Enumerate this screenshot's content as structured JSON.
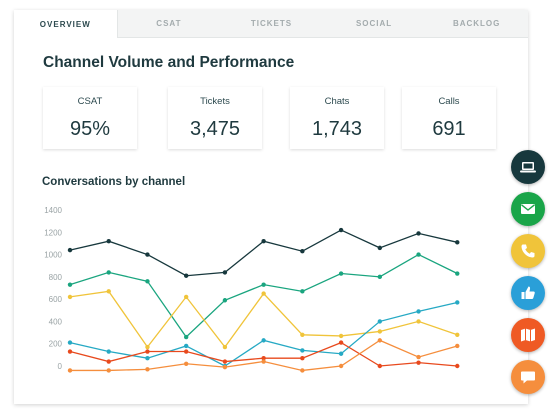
{
  "tabs": [
    {
      "label": "OVERVIEW",
      "active": true
    },
    {
      "label": "CSAT",
      "active": false
    },
    {
      "label": "TICKETS",
      "active": false
    },
    {
      "label": "SOCIAL",
      "active": false
    },
    {
      "label": "BACKLOG",
      "active": false
    }
  ],
  "page_title": "Channel Volume and Performance",
  "kpis": [
    {
      "label": "CSAT",
      "value": "95%"
    },
    {
      "label": "Tickets",
      "value": "3,475"
    },
    {
      "label": "Chats",
      "value": "1,743"
    },
    {
      "label": "Calls",
      "value": "691"
    }
  ],
  "chart_data": {
    "type": "line",
    "title": "Conversations by channel",
    "xlabel": "",
    "ylabel": "",
    "yticks": [
      "1400",
      "1200",
      "1000",
      "800",
      "600",
      "400",
      "200",
      "0"
    ],
    "ylim": [
      -100,
      1400
    ],
    "grid": false,
    "x": [
      1,
      2,
      3,
      4,
      5,
      6,
      7,
      8,
      9,
      10,
      11,
      12
    ],
    "series": [
      {
        "color": "#17383d",
        "values": [
          1040,
          1120,
          1000,
          810,
          840,
          1120,
          1030,
          1220,
          1060,
          1190,
          1110,
          null
        ]
      },
      {
        "color": "#1aa57f",
        "values": [
          730,
          840,
          760,
          260,
          590,
          730,
          670,
          830,
          800,
          1000,
          830,
          null
        ]
      },
      {
        "color": "#f0c43a",
        "values": [
          620,
          670,
          170,
          620,
          170,
          650,
          280,
          270,
          310,
          400,
          280,
          null
        ]
      },
      {
        "color": "#26a9c4",
        "values": [
          210,
          130,
          70,
          180,
          0,
          230,
          140,
          110,
          400,
          490,
          570,
          null
        ]
      },
      {
        "color": "#e8491d",
        "values": [
          130,
          40,
          130,
          130,
          40,
          70,
          70,
          210,
          0,
          30,
          0,
          null
        ]
      },
      {
        "color": "#f58e3d",
        "values": [
          -40,
          -40,
          -30,
          20,
          -10,
          40,
          -40,
          0,
          230,
          80,
          180,
          null
        ]
      }
    ]
  },
  "fabs": [
    {
      "icon": "laptop-icon",
      "color": "#17383d"
    },
    {
      "icon": "email-icon",
      "color": "#1aa549"
    },
    {
      "icon": "phone-icon",
      "color": "#f0c43a"
    },
    {
      "icon": "thumbs-up-icon",
      "color": "#2a9fd8"
    },
    {
      "icon": "map-icon",
      "color": "#ef5a24"
    },
    {
      "icon": "chat-icon",
      "color": "#f58e3d"
    }
  ]
}
